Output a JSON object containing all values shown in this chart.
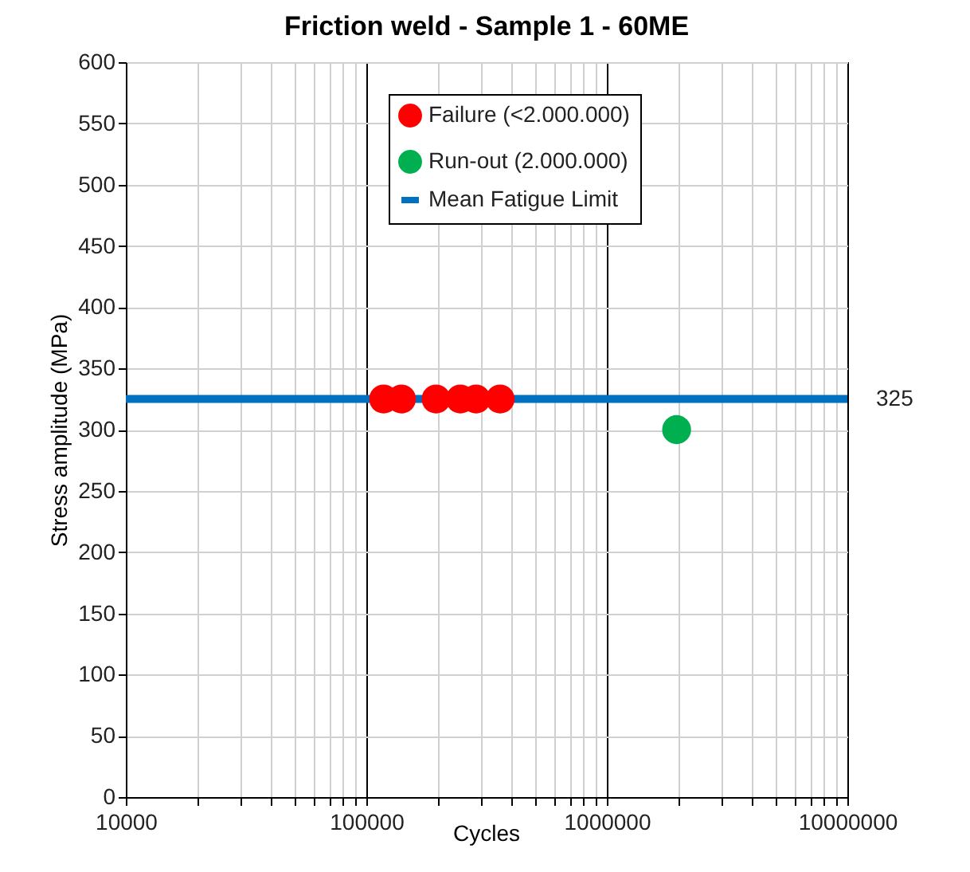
{
  "chart_data": {
    "type": "scatter",
    "title": "Friction weld - Sample 1 - 60ME",
    "xlabel": "Cycles",
    "ylabel": "Stress amplitude (MPa)",
    "log": "x",
    "grid": true,
    "legend": "top",
    "xlim": [
      10000,
      10000000
    ],
    "xticks": [
      10000,
      {
        "value": 20000,
        "label": null
      },
      {
        "value": 30000,
        "label": null
      },
      {
        "value": 40000,
        "label": null
      },
      {
        "value": 50000,
        "label": null
      },
      {
        "value": 60000,
        "label": null
      },
      {
        "value": 70000,
        "label": null
      },
      {
        "value": 80000,
        "label": null
      },
      {
        "value": 90000,
        "label": null
      },
      100000,
      {
        "value": 200000,
        "label": null
      },
      {
        "value": 300000,
        "label": null
      },
      {
        "value": 400000,
        "label": null
      },
      {
        "value": 500000,
        "label": null
      },
      {
        "value": 600000,
        "label": null
      },
      {
        "value": 700000,
        "label": null
      },
      {
        "value": 800000,
        "label": null
      },
      {
        "value": 900000,
        "label": null
      },
      1000000,
      {
        "value": 2000000,
        "label": null
      },
      {
        "value": 3000000,
        "label": null
      },
      {
        "value": 4000000,
        "label": null
      },
      {
        "value": 5000000,
        "label": null
      },
      {
        "value": 6000000,
        "label": null
      },
      {
        "value": 7000000,
        "label": null
      },
      {
        "value": 8000000,
        "label": null
      },
      {
        "value": 9000000,
        "label": null
      },
      10000000
    ],
    "ylim": [
      0,
      600
    ],
    "yticks": [
      0,
      50,
      100,
      150,
      200,
      250,
      300,
      350,
      400,
      450,
      500,
      550,
      600
    ],
    "series": [
      {
        "name": "Failure (<2.000.000)",
        "type": "scatter",
        "marker": "circle",
        "color": "#ff0000",
        "x": [
          118000,
          140000,
          195000,
          246000,
          286000,
          360000
        ],
        "values": [
          325,
          325,
          325,
          325,
          325,
          325
        ]
      },
      {
        "name": "Run-out (2.000.000)",
        "type": "scatter",
        "marker": "circle",
        "color": "#00b050",
        "x": [
          1950000
        ],
        "values": [
          300
        ]
      },
      {
        "name": "Mean Fatigue Limit",
        "type": "line",
        "color": "#0070c0",
        "x": [
          10000,
          10000000
        ],
        "values": [
          325,
          325
        ],
        "value_labels": [
          null,
          "325"
        ]
      }
    ]
  }
}
